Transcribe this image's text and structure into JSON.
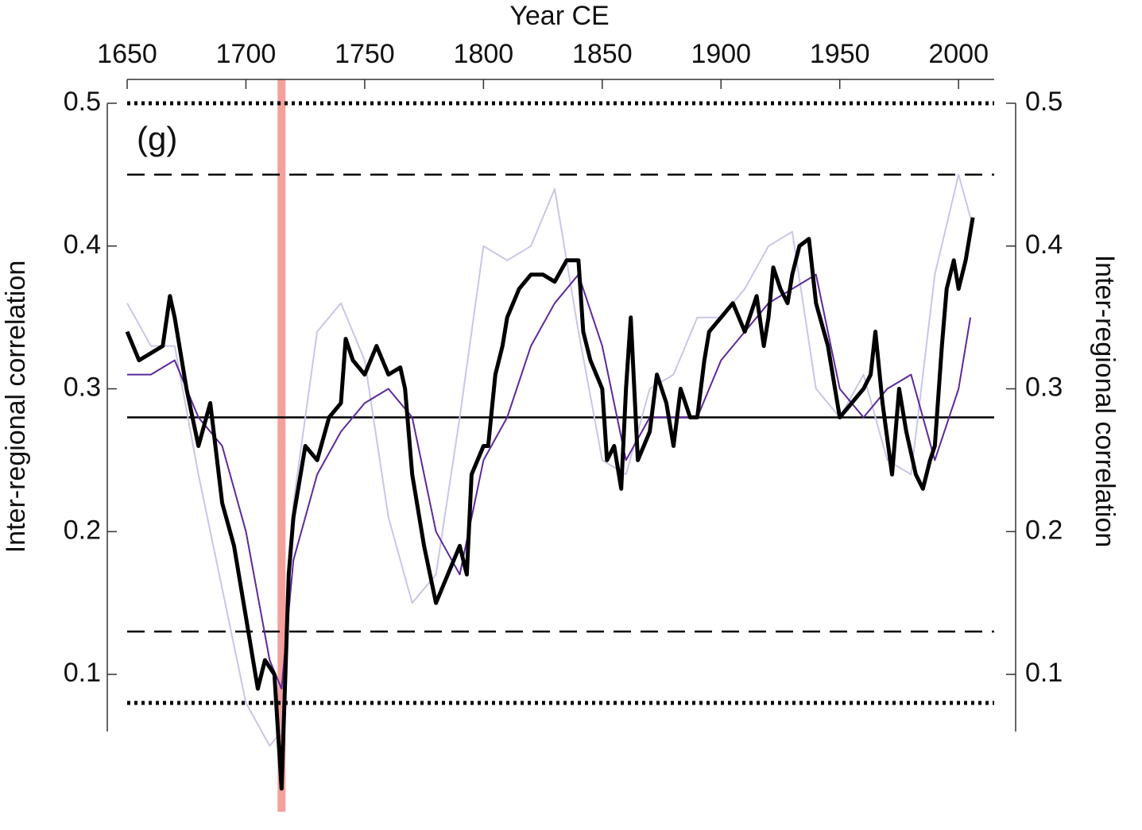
{
  "chart_data": {
    "type": "line",
    "panel_label": "(g)",
    "xlabel": "Year CE",
    "ylabel": "Inter-regional correlation",
    "y2label": "Inter-regional correlation",
    "xlim": [
      1650,
      2015
    ],
    "xticks": [
      1650,
      1700,
      1750,
      1800,
      1850,
      1900,
      1950,
      2000
    ],
    "ylim": [
      0.06,
      0.5
    ],
    "yticks": [
      0.1,
      0.2,
      0.3,
      0.4,
      0.5
    ],
    "highlight_x": 1715,
    "highlight_color": "#f4a09c",
    "reference_lines": [
      {
        "value": 0.5,
        "style": "dotted"
      },
      {
        "value": 0.45,
        "style": "dashed"
      },
      {
        "value": 0.28,
        "style": "solid"
      },
      {
        "value": 0.13,
        "style": "dashed"
      },
      {
        "value": 0.08,
        "style": "dotted"
      }
    ],
    "series": [
      {
        "color": "#c9c6e6",
        "width": 2,
        "x": [
          1650,
          1660,
          1670,
          1680,
          1690,
          1700,
          1710,
          1715,
          1720,
          1730,
          1740,
          1750,
          1760,
          1770,
          1780,
          1790,
          1800,
          1810,
          1820,
          1830,
          1840,
          1850,
          1860,
          1870,
          1880,
          1890,
          1900,
          1910,
          1920,
          1930,
          1940,
          1950,
          1960,
          1970,
          1980,
          1990,
          2000,
          2005
        ],
        "values": [
          0.36,
          0.33,
          0.33,
          0.24,
          0.16,
          0.08,
          0.05,
          0.06,
          0.22,
          0.34,
          0.36,
          0.32,
          0.21,
          0.15,
          0.17,
          0.28,
          0.4,
          0.39,
          0.4,
          0.44,
          0.34,
          0.25,
          0.24,
          0.3,
          0.31,
          0.35,
          0.35,
          0.37,
          0.4,
          0.41,
          0.3,
          0.28,
          0.31,
          0.25,
          0.24,
          0.38,
          0.45,
          0.42
        ]
      },
      {
        "color": "#5b2a9a",
        "width": 2,
        "x": [
          1650,
          1660,
          1670,
          1680,
          1690,
          1700,
          1710,
          1715,
          1720,
          1730,
          1740,
          1750,
          1760,
          1770,
          1780,
          1790,
          1800,
          1810,
          1820,
          1830,
          1840,
          1850,
          1860,
          1870,
          1880,
          1890,
          1900,
          1910,
          1920,
          1930,
          1940,
          1950,
          1960,
          1970,
          1980,
          1990,
          2000,
          2005
        ],
        "values": [
          0.31,
          0.31,
          0.32,
          0.28,
          0.26,
          0.2,
          0.11,
          0.09,
          0.18,
          0.24,
          0.27,
          0.29,
          0.3,
          0.28,
          0.2,
          0.17,
          0.25,
          0.28,
          0.33,
          0.36,
          0.38,
          0.33,
          0.25,
          0.28,
          0.28,
          0.28,
          0.32,
          0.34,
          0.36,
          0.37,
          0.38,
          0.3,
          0.28,
          0.3,
          0.31,
          0.25,
          0.3,
          0.35
        ]
      },
      {
        "color": "#000000",
        "width": 5,
        "x": [
          1650,
          1655,
          1660,
          1665,
          1668,
          1670,
          1675,
          1680,
          1685,
          1690,
          1695,
          1700,
          1705,
          1708,
          1712,
          1715,
          1718,
          1720,
          1725,
          1730,
          1735,
          1740,
          1742,
          1745,
          1750,
          1755,
          1760,
          1765,
          1767,
          1770,
          1775,
          1780,
          1785,
          1790,
          1793,
          1795,
          1800,
          1802,
          1805,
          1808,
          1810,
          1815,
          1820,
          1825,
          1830,
          1835,
          1840,
          1842,
          1845,
          1850,
          1852,
          1855,
          1858,
          1860,
          1862,
          1865,
          1870,
          1873,
          1877,
          1880,
          1883,
          1887,
          1890,
          1893,
          1895,
          1900,
          1905,
          1910,
          1915,
          1918,
          1920,
          1922,
          1925,
          1928,
          1930,
          1933,
          1937,
          1940,
          1945,
          1950,
          1955,
          1960,
          1963,
          1965,
          1968,
          1972,
          1975,
          1978,
          1982,
          1985,
          1988,
          1990,
          1993,
          1995,
          1998,
          2000,
          2003,
          2006
        ],
        "values": [
          0.34,
          0.32,
          0.325,
          0.33,
          0.365,
          0.35,
          0.3,
          0.26,
          0.29,
          0.22,
          0.19,
          0.14,
          0.09,
          0.11,
          0.1,
          0.02,
          0.17,
          0.21,
          0.26,
          0.25,
          0.28,
          0.29,
          0.335,
          0.32,
          0.31,
          0.33,
          0.31,
          0.315,
          0.3,
          0.24,
          0.19,
          0.15,
          0.17,
          0.19,
          0.17,
          0.24,
          0.26,
          0.26,
          0.31,
          0.33,
          0.35,
          0.37,
          0.38,
          0.38,
          0.375,
          0.39,
          0.39,
          0.34,
          0.32,
          0.3,
          0.25,
          0.26,
          0.23,
          0.3,
          0.35,
          0.25,
          0.27,
          0.31,
          0.29,
          0.26,
          0.3,
          0.28,
          0.28,
          0.32,
          0.34,
          0.35,
          0.36,
          0.34,
          0.365,
          0.33,
          0.35,
          0.385,
          0.37,
          0.36,
          0.38,
          0.4,
          0.405,
          0.36,
          0.33,
          0.28,
          0.29,
          0.3,
          0.31,
          0.34,
          0.29,
          0.24,
          0.3,
          0.27,
          0.24,
          0.23,
          0.25,
          0.26,
          0.33,
          0.37,
          0.39,
          0.37,
          0.39,
          0.42
        ]
      }
    ]
  }
}
